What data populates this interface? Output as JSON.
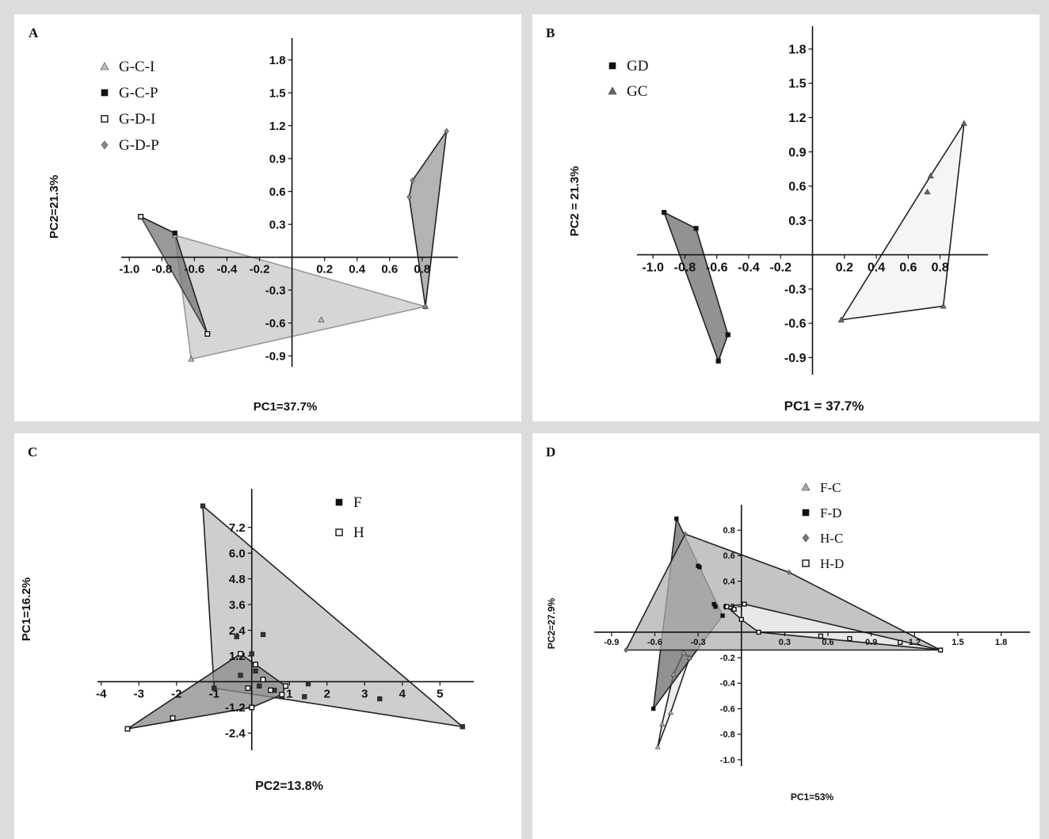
{
  "chart_data": [
    {
      "panel": "A",
      "type": "scatter",
      "xlabel": "PC1=37.7%",
      "ylabel": "PC2=21.3%",
      "xlim": [
        -1.05,
        1.02
      ],
      "ylim": [
        -1.0,
        2.0
      ],
      "xticks": [
        -1.0,
        -0.8,
        -0.6,
        -0.4,
        -0.2,
        0.2,
        0.4,
        0.6,
        0.8
      ],
      "xtick_labels": [
        "-1.0",
        "-0.8",
        "-0.6",
        "-0.4",
        "-0.2",
        "0.2",
        "0.4",
        "0.6",
        "0.8"
      ],
      "yticks": [
        -0.9,
        -0.6,
        -0.3,
        0.3,
        0.6,
        0.9,
        1.2,
        1.5,
        1.8
      ],
      "ytick_labels": [
        "-0.9",
        "-0.6",
        "-0.3",
        "0.3",
        "0.6",
        "0.9",
        "1.2",
        "1.5",
        "1.8"
      ],
      "legend": "top-left",
      "series": [
        {
          "name": "G-C-I",
          "marker": "triangle",
          "color": "#bdbdbd",
          "fill": "#c8c8c8",
          "x": [
            0.18,
            0.82,
            -0.62,
            -0.72
          ],
          "y": [
            -0.57,
            -0.45,
            -0.93,
            0.2
          ]
        },
        {
          "name": "G-C-P",
          "marker": "square",
          "color": "#111111",
          "fill": "#777777",
          "x": [
            -0.93,
            -0.72,
            -0.52
          ],
          "y": [
            0.37,
            0.22,
            -0.7
          ]
        },
        {
          "name": "G-D-I",
          "marker": "open-square",
          "color": "#111111",
          "fill": "#777777",
          "x": [
            -0.93,
            -0.52
          ],
          "y": [
            0.37,
            -0.7
          ]
        },
        {
          "name": "G-D-P",
          "marker": "diamond",
          "color": "#888888",
          "fill": "#9a9a9a",
          "x": [
            0.95,
            0.74,
            0.72,
            0.82
          ],
          "y": [
            1.15,
            0.7,
            0.55,
            -0.45
          ]
        }
      ]
    },
    {
      "panel": "B",
      "type": "scatter",
      "xlabel": "PC1 = 37.7%",
      "ylabel": "PC2 = 21.3%",
      "xlim": [
        -1.1,
        1.1
      ],
      "ylim": [
        -1.05,
        2.0
      ],
      "xticks": [
        -1.0,
        -0.8,
        -0.6,
        -0.4,
        -0.2,
        0.2,
        0.4,
        0.6,
        0.8
      ],
      "xtick_labels": [
        "-1.0",
        "-0.8",
        "-0.6",
        "-0.4",
        "-0.2",
        "0.2",
        "0.4",
        "0.6",
        "0.8"
      ],
      "yticks": [
        -0.9,
        -0.6,
        -0.3,
        0.3,
        0.6,
        0.9,
        1.2,
        1.5,
        1.8
      ],
      "ytick_labels": [
        "-0.9",
        "-0.6",
        "-0.3",
        "0.3",
        "0.6",
        "0.9",
        "1.2",
        "1.5",
        "1.8"
      ],
      "legend": "top-left",
      "series": [
        {
          "name": "GD",
          "marker": "square",
          "color": "#111111",
          "fill": "#6e6e6e",
          "x": [
            -0.93,
            -0.73,
            -0.59,
            -0.53
          ],
          "y": [
            0.37,
            0.23,
            -0.93,
            -0.7
          ]
        },
        {
          "name": "GC",
          "marker": "triangle",
          "color": "#666666",
          "fill": "#f2f2f2",
          "x": [
            0.95,
            0.74,
            0.72,
            0.82,
            0.18
          ],
          "y": [
            1.15,
            0.69,
            0.55,
            -0.45,
            -0.57
          ]
        }
      ]
    },
    {
      "panel": "C",
      "type": "scatter",
      "xlabel": "PC2=13.8%",
      "ylabel": "PC1=16.2%",
      "xlim": [
        -4.1,
        5.9
      ],
      "ylim": [
        -3.2,
        9.0
      ],
      "xticks": [
        -4,
        -3,
        -2,
        -1,
        1,
        2,
        3,
        4,
        5
      ],
      "xtick_labels": [
        "-4",
        "-3",
        "-2",
        "-1",
        "1",
        "2",
        "3",
        "4",
        "5"
      ],
      "yticks": [
        -2.4,
        -1.2,
        1.2,
        2.4,
        3.6,
        4.8,
        6.0,
        7.2
      ],
      "ytick_labels": [
        "-2.4",
        "-1.2",
        "1.2",
        "2.4",
        "3.6",
        "4.8",
        "6.0",
        "7.2"
      ],
      "legend": "top-right",
      "series": [
        {
          "name": "F",
          "marker": "square",
          "color": "#333333",
          "fill": "#bdbdbd",
          "x": [
            -1.3,
            5.6,
            -1.0,
            0.3,
            0.5,
            0.6,
            0.8,
            1.5,
            1.4,
            3.4,
            0.1,
            -0.3,
            -0.4,
            0.2,
            0.0
          ],
          "y": [
            8.2,
            -2.1,
            -0.3,
            2.2,
            -0.4,
            -0.4,
            -0.7,
            -0.1,
            -0.7,
            -0.8,
            0.5,
            0.3,
            2.1,
            -0.2,
            1.3
          ]
        },
        {
          "name": "H",
          "marker": "open-square",
          "color": "#333333",
          "fill": "#8a8a8a",
          "x": [
            -3.3,
            -2.1,
            -0.3,
            0.0,
            0.8,
            0.1,
            0.3,
            0.9,
            -0.1,
            0.5
          ],
          "y": [
            -2.2,
            -1.7,
            1.3,
            -1.2,
            -0.6,
            0.8,
            0.1,
            -0.2,
            -0.3,
            -0.4
          ]
        }
      ]
    },
    {
      "panel": "D",
      "type": "scatter",
      "xlabel": "PC1=53%",
      "ylabel": "PC2=27.9%",
      "xlim": [
        -1.02,
        2.0
      ],
      "ylim": [
        -1.05,
        1.0
      ],
      "xticks": [
        -0.9,
        -0.6,
        -0.3,
        0.3,
        0.6,
        0.9,
        1.2,
        1.5,
        1.8
      ],
      "xtick_labels": [
        "-0.9",
        "-0.6",
        "-0.3",
        "0.3",
        "0.6",
        "0.9",
        "1.2",
        "1.5",
        "1.8"
      ],
      "yticks": [
        -1.0,
        -0.8,
        -0.6,
        -0.4,
        -0.2,
        0.2,
        0.4,
        0.6,
        0.8
      ],
      "ytick_labels": [
        "-1.0",
        "-0.8",
        "-0.6",
        "-0.4",
        "-0.2",
        "0.2",
        "0.4",
        "0.6",
        "0.8"
      ],
      "legend": "top-right",
      "series": [
        {
          "name": "F-C",
          "marker": "triangle",
          "color": "#aaaaaa",
          "fill": "#e8e8e8",
          "x": [
            -0.58,
            -0.4,
            -0.47,
            -0.49,
            -0.55,
            -0.36
          ],
          "y": [
            -0.9,
            -0.16,
            -0.33,
            -0.63,
            -0.72,
            -0.2
          ]
        },
        {
          "name": "F-D",
          "marker": "square",
          "color": "#111111",
          "fill": "#6c6c6c",
          "x": [
            -0.45,
            -0.29,
            -0.18,
            -0.61,
            -0.3,
            -0.13,
            -0.19
          ],
          "y": [
            0.89,
            0.51,
            0.2,
            -0.6,
            0.52,
            0.13,
            0.22
          ]
        },
        {
          "name": "H-C",
          "marker": "diamond",
          "color": "#777777",
          "fill": "#b0b0b0",
          "x": [
            -0.8,
            -0.39,
            0.33,
            1.38,
            0.0
          ],
          "y": [
            -0.14,
            0.77,
            0.47,
            -0.14,
            0.1
          ]
        },
        {
          "name": "H-D",
          "marker": "open-square",
          "color": "#999999",
          "fill": "#f4f4f4",
          "x": [
            0.0,
            1.38,
            0.12,
            0.55,
            0.75,
            1.1,
            -0.05,
            0.02,
            -0.1
          ],
          "y": [
            0.1,
            -0.14,
            0.0,
            -0.03,
            -0.05,
            -0.08,
            0.18,
            0.22,
            0.2
          ]
        }
      ]
    }
  ]
}
